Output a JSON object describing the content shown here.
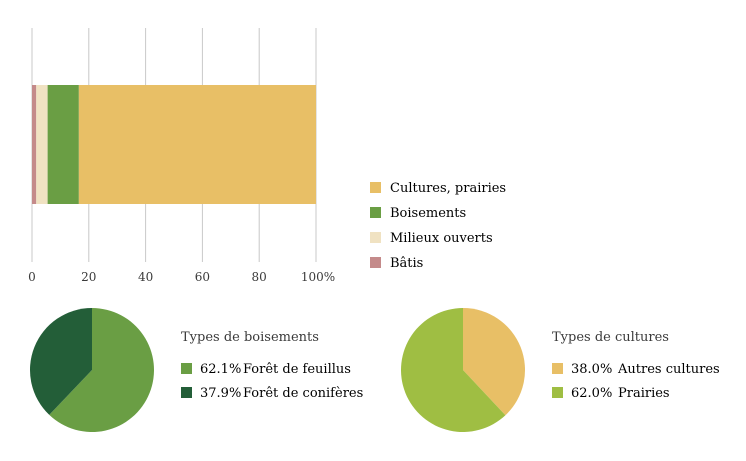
{
  "chart_data": [
    {
      "type": "bar",
      "orientation": "horizontal",
      "stacked": true,
      "categories": [
        ""
      ],
      "series": [
        {
          "name": "Bâtis",
          "values": [
            1.5
          ],
          "color": "#c48a8a"
        },
        {
          "name": "Milieux ouverts",
          "values": [
            4
          ],
          "color": "#f0e2c2"
        },
        {
          "name": "Boisements",
          "values": [
            11
          ],
          "color": "#6a9e44"
        },
        {
          "name": "Cultures, prairies",
          "values": [
            83.5
          ],
          "color": "#e8bf66"
        }
      ],
      "xlim": [
        0,
        100
      ],
      "xticks": [
        "0",
        "20",
        "40",
        "60",
        "80",
        "100%"
      ],
      "grid": true,
      "legend": {
        "placement": "right",
        "order": [
          "Cultures, prairies",
          "Boisements",
          "Milieux ouverts",
          "Bâtis"
        ]
      }
    },
    {
      "type": "pie",
      "title": "Types de boisements",
      "slices": [
        {
          "label": "Forêt de feuillus",
          "value": 62.1,
          "value_label": "62.1%",
          "color": "#6a9e44"
        },
        {
          "label": "Forêt de conifères",
          "value": 37.9,
          "value_label": "37.9%",
          "color": "#235e38"
        }
      ]
    },
    {
      "type": "pie",
      "title": "Types de cultures",
      "slices": [
        {
          "label": "Autres cultures",
          "value": 38.0,
          "value_label": "38.0%",
          "color": "#e8bf66"
        },
        {
          "label": "Prairies",
          "value": 62.0,
          "value_label": "62.0%",
          "color": "#9fbe43"
        }
      ]
    }
  ]
}
